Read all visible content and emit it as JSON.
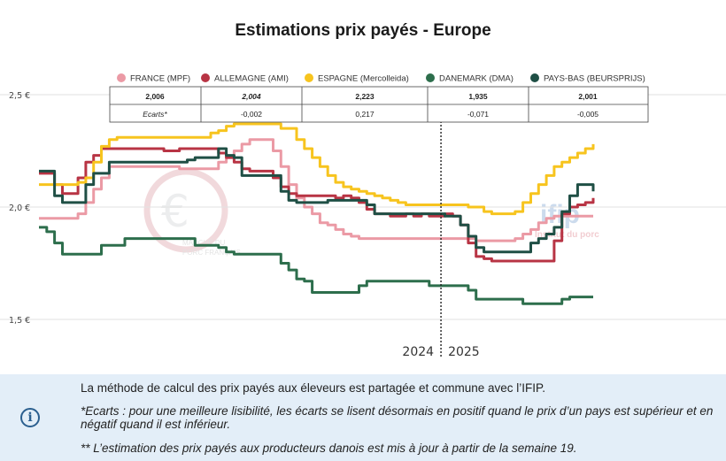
{
  "chart_data": {
    "type": "line",
    "title": "Estimations prix payés - Europe",
    "xlabel": "",
    "ylabel": "",
    "ylim": [
      1.5,
      2.5
    ],
    "yticks": [
      "1,5 €",
      "2,0 €",
      "2,5 €"
    ],
    "x": [
      1,
      2,
      3,
      4,
      5,
      6,
      7,
      8,
      9,
      10,
      11,
      12,
      13,
      14,
      15,
      16,
      17,
      18,
      19,
      20,
      21,
      22,
      23,
      24,
      25,
      26,
      27,
      28,
      29,
      30,
      31,
      32,
      33,
      34,
      35,
      36,
      37,
      38,
      39,
      40,
      41,
      42,
      43,
      44,
      45,
      46,
      47,
      48,
      49,
      50,
      51,
      52,
      53,
      54,
      55,
      56,
      57,
      58,
      59,
      60,
      61,
      62,
      63,
      64,
      65,
      66,
      67,
      68,
      69,
      70,
      71,
      72
    ],
    "year_labels": [
      "2024",
      "2025"
    ],
    "year_divider_x": 52.5,
    "grid": true,
    "legend_position": "top",
    "series": [
      {
        "name": "FRANCE (MPF)",
        "color": "#eb9aa5",
        "values": [
          1.95,
          1.95,
          1.95,
          1.95,
          1.95,
          1.97,
          2.02,
          2.08,
          2.13,
          2.18,
          2.18,
          2.18,
          2.18,
          2.18,
          2.18,
          2.18,
          2.18,
          2.18,
          2.17,
          2.17,
          2.17,
          2.17,
          2.17,
          2.2,
          2.22,
          2.25,
          2.28,
          2.3,
          2.3,
          2.3,
          2.25,
          2.18,
          2.1,
          2.04,
          2.0,
          1.97,
          1.93,
          1.92,
          1.9,
          1.88,
          1.87,
          1.86,
          1.86,
          1.86,
          1.86,
          1.86,
          1.86,
          1.86,
          1.86,
          1.86,
          1.86,
          1.86,
          1.86,
          1.86,
          1.86,
          1.86,
          1.85,
          1.85,
          1.85,
          1.85,
          1.85,
          1.86,
          1.88,
          1.9,
          1.93,
          1.95,
          1.96,
          1.96,
          1.96,
          1.96,
          1.96,
          1.96
        ]
      },
      {
        "name": "ALLEMAGNE (AMI)",
        "color": "#b83444",
        "values": [
          2.15,
          2.15,
          2.1,
          2.06,
          2.06,
          2.13,
          2.2,
          2.23,
          2.26,
          2.26,
          2.26,
          2.26,
          2.26,
          2.26,
          2.26,
          2.26,
          2.25,
          2.25,
          2.26,
          2.26,
          2.26,
          2.26,
          2.26,
          2.24,
          2.22,
          2.2,
          2.17,
          2.16,
          2.16,
          2.16,
          2.13,
          2.09,
          2.06,
          2.05,
          2.05,
          2.05,
          2.05,
          2.05,
          2.04,
          2.05,
          2.04,
          2.02,
          1.99,
          1.97,
          1.97,
          1.96,
          1.96,
          1.97,
          1.96,
          1.97,
          1.96,
          1.96,
          1.97,
          1.96,
          1.92,
          1.84,
          1.78,
          1.77,
          1.76,
          1.76,
          1.76,
          1.76,
          1.76,
          1.76,
          1.76,
          1.76,
          1.85,
          1.97,
          2.0,
          2.01,
          2.02,
          2.04
        ]
      },
      {
        "name": "ESPAGNE (Mercolleida)",
        "color": "#f7c41e",
        "values": [
          2.1,
          2.1,
          2.1,
          2.1,
          2.1,
          2.11,
          2.13,
          2.2,
          2.27,
          2.3,
          2.31,
          2.31,
          2.31,
          2.31,
          2.31,
          2.31,
          2.31,
          2.31,
          2.31,
          2.31,
          2.31,
          2.31,
          2.33,
          2.34,
          2.36,
          2.37,
          2.37,
          2.37,
          2.37,
          2.37,
          2.37,
          2.35,
          2.35,
          2.3,
          2.26,
          2.22,
          2.18,
          2.14,
          2.11,
          2.09,
          2.08,
          2.07,
          2.06,
          2.05,
          2.04,
          2.03,
          2.02,
          2.01,
          2.01,
          2.01,
          2.01,
          2.01,
          2.01,
          2.01,
          2.01,
          2.0,
          2.0,
          1.98,
          1.97,
          1.97,
          1.97,
          1.98,
          2.02,
          2.06,
          2.1,
          2.14,
          2.18,
          2.2,
          2.22,
          2.24,
          2.26,
          2.28
        ]
      },
      {
        "name": "DANEMARK (DMA)",
        "color": "#2d6e4c",
        "values": [
          1.91,
          1.89,
          1.84,
          1.79,
          1.79,
          1.79,
          1.79,
          1.79,
          1.83,
          1.83,
          1.83,
          1.86,
          1.86,
          1.86,
          1.86,
          1.86,
          1.86,
          1.86,
          1.86,
          1.86,
          1.83,
          1.83,
          1.83,
          1.82,
          1.8,
          1.79,
          1.79,
          1.79,
          1.79,
          1.79,
          1.79,
          1.75,
          1.72,
          1.68,
          1.67,
          1.62,
          1.62,
          1.62,
          1.62,
          1.62,
          1.62,
          1.65,
          1.67,
          1.67,
          1.67,
          1.67,
          1.67,
          1.67,
          1.67,
          1.67,
          1.65,
          1.65,
          1.65,
          1.65,
          1.65,
          1.63,
          1.59,
          1.59,
          1.59,
          1.59,
          1.59,
          1.59,
          1.57,
          1.57,
          1.57,
          1.57,
          1.57,
          1.59,
          1.6,
          1.6,
          1.6,
          1.6
        ]
      },
      {
        "name": "PAYS-BAS (BEURSPRIJS)",
        "color": "#1f4f45",
        "values": [
          2.16,
          2.16,
          2.05,
          2.02,
          2.02,
          2.02,
          2.1,
          2.15,
          2.15,
          2.2,
          2.2,
          2.2,
          2.2,
          2.2,
          2.2,
          2.2,
          2.2,
          2.2,
          2.2,
          2.21,
          2.22,
          2.22,
          2.22,
          2.26,
          2.23,
          2.22,
          2.14,
          2.14,
          2.14,
          2.14,
          2.14,
          2.07,
          2.03,
          2.02,
          2.02,
          2.02,
          2.02,
          2.03,
          2.03,
          2.03,
          2.03,
          2.03,
          2.01,
          1.97,
          1.97,
          1.97,
          1.97,
          1.97,
          1.97,
          1.97,
          1.97,
          1.97,
          1.96,
          1.96,
          1.92,
          1.87,
          1.82,
          1.8,
          1.8,
          1.8,
          1.8,
          1.8,
          1.8,
          1.84,
          1.86,
          1.88,
          1.91,
          1.98,
          2.05,
          2.1,
          2.1,
          2.07
        ]
      }
    ],
    "table": {
      "rows": [
        {
          "label": "",
          "values": [
            "2,006",
            "2,004",
            "2,223",
            "1,935",
            "2,001"
          ]
        },
        {
          "label": "Ecarts*",
          "values": [
            "-0,002",
            "0,217",
            "-0,071",
            "-0,005"
          ]
        }
      ]
    }
  },
  "notes": {
    "line1": "La méthode de calcul des prix payés aux éleveurs est partagée et commune avec l’IFIP.",
    "line2": "*Ecarts : pour une meilleure lisibilité, les écarts se lisent désormais en positif quand le prix d’un pays est supérieur et en négatif quand il est inférieur.",
    "line3": "** L’estimation des prix payés aux producteurs danois est mis à jour à partir de la semaine 19."
  },
  "watermarks": {
    "left_line1": "MARCHÉ DU",
    "left_line2": "PORC FRANÇAIS",
    "right_logo": "ifip",
    "right_text": "Institut du porc"
  },
  "icons": {
    "info": "info-icon"
  }
}
